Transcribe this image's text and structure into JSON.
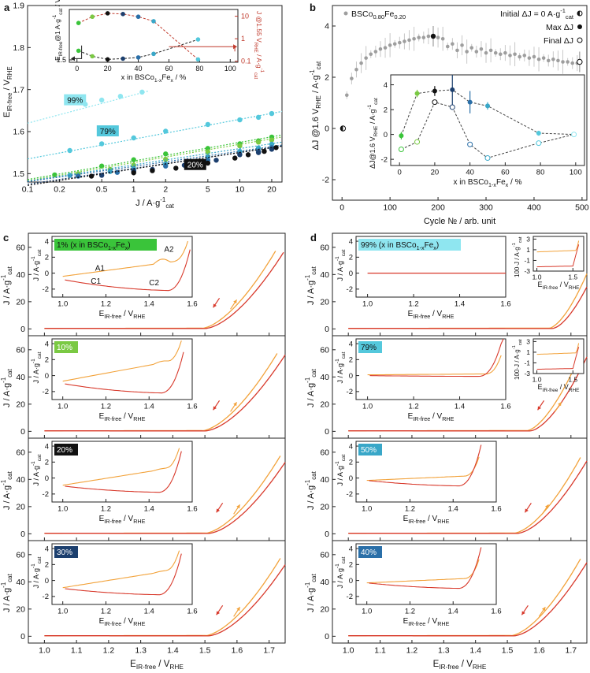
{
  "figure": {
    "colors": {
      "x1": "#3ac43a",
      "x10": "#7ac943",
      "x20": "#111111",
      "x30": "#1c3f6e",
      "x40": "#2a6fa8",
      "x50": "#39a7c8",
      "x79": "#54c8dc",
      "x99": "#8fe6f0",
      "forward": "#f2a23a",
      "backward": "#d8392b",
      "grey": "#9e9e9e",
      "darkred": "#c0392b"
    }
  },
  "chart_data": [
    {
      "id": "a",
      "panel_label": "a",
      "type": "scatter",
      "title": "",
      "xlabel_main": "J / A·g",
      "xlabel_sup": "-1",
      "xlabel_sub": "cat",
      "ylabel_main": "E",
      "ylabel_sub": "IR-free",
      "ylabel_tail": " / V",
      "ylabel_sub2": "RHE",
      "xscale": "log",
      "xlim": [
        0.1,
        25
      ],
      "ylim": [
        1.48,
        1.9
      ],
      "xticks": [
        0.1,
        0.2,
        0.5,
        1,
        2,
        5,
        10,
        20
      ],
      "xtick_labels": [
        "0.1",
        "0.2",
        "0.5",
        "1",
        "2",
        "5",
        "10",
        "20"
      ],
      "yticks": [
        1.5,
        1.6,
        1.7,
        1.8,
        1.9
      ],
      "ytick_labels": [
        "1.5",
        "1.6",
        "1.7",
        "1.8",
        "1.9"
      ],
      "labels": {
        "l99": "99%",
        "l79": "79%",
        "l20": "20%"
      },
      "series": [
        {
          "name": "99%",
          "key": "x99",
          "points": [
            [
              0.35,
              1.665
            ],
            [
              0.5,
              1.675
            ],
            [
              0.75,
              1.684
            ],
            [
              1.2,
              1.694
            ]
          ],
          "fit": [
            [
              0.1,
              1.62
            ],
            [
              1.4,
              1.697
            ]
          ]
        },
        {
          "name": "79%",
          "key": "x79",
          "points": [
            [
              0.25,
              1.555
            ],
            [
              0.5,
              1.571
            ],
            [
              1.0,
              1.585
            ],
            [
              2.0,
              1.601
            ],
            [
              5.0,
              1.617
            ],
            [
              10,
              1.628
            ],
            [
              15,
              1.634
            ],
            [
              20,
              1.643
            ]
          ],
          "fit": [
            [
              0.1,
              1.535
            ],
            [
              25,
              1.648
            ]
          ]
        },
        {
          "name": "1%",
          "key": "x1",
          "points": [
            [
              0.18,
              1.497
            ],
            [
              0.5,
              1.518
            ],
            [
              1.0,
              1.533
            ],
            [
              2.0,
              1.547
            ],
            [
              5.0,
              1.56
            ],
            [
              10,
              1.571
            ],
            [
              15,
              1.578
            ],
            [
              20,
              1.587
            ]
          ],
          "fit": [
            [
              0.1,
              1.486
            ],
            [
              25,
              1.592
            ]
          ]
        },
        {
          "name": "10%",
          "key": "x10",
          "points": [
            [
              0.3,
              1.5
            ],
            [
              0.6,
              1.51
            ],
            [
              1.0,
              1.52
            ],
            [
              2.0,
              1.534
            ],
            [
              5.0,
              1.551
            ],
            [
              10,
              1.566
            ],
            [
              15,
              1.575
            ],
            [
              20,
              1.58
            ]
          ],
          "fit": [
            [
              0.1,
              1.483
            ],
            [
              25,
              1.587
            ]
          ]
        },
        {
          "name": "50%",
          "key": "x50",
          "points": [
            [
              0.25,
              1.496
            ],
            [
              0.6,
              1.505
            ],
            [
              1.0,
              1.512
            ],
            [
              2.0,
              1.523
            ],
            [
              5.0,
              1.54
            ],
            [
              10,
              1.553
            ],
            [
              15,
              1.561
            ],
            [
              20,
              1.57
            ]
          ],
          "fit": [
            [
              0.1,
              1.482
            ],
            [
              25,
              1.575
            ]
          ]
        },
        {
          "name": "40%",
          "key": "x40",
          "points": [
            [
              0.3,
              1.494
            ],
            [
              0.7,
              1.503
            ],
            [
              1.0,
              1.508
            ],
            [
              2.0,
              1.518
            ],
            [
              5.0,
              1.532
            ],
            [
              10,
              1.546
            ],
            [
              15,
              1.553
            ],
            [
              20,
              1.562
            ]
          ],
          "fit": [
            [
              0.1,
              1.481
            ],
            [
              25,
              1.568
            ]
          ]
        },
        {
          "name": "30%",
          "key": "x30",
          "points": [
            [
              0.5,
              1.496
            ],
            [
              1.0,
              1.505
            ],
            [
              1.5,
              1.51
            ],
            [
              3.0,
              1.52
            ],
            [
              6.0,
              1.532
            ],
            [
              10,
              1.545
            ],
            [
              15,
              1.55
            ],
            [
              20,
              1.558
            ]
          ],
          "fit": [
            [
              0.1,
              1.475
            ],
            [
              25,
              1.565
            ]
          ]
        },
        {
          "name": "20%",
          "key": "x20",
          "points": [
            [
              0.4,
              1.494
            ],
            [
              1.0,
              1.502
            ],
            [
              1.5,
              1.507
            ],
            [
              2.5,
              1.513
            ],
            [
              5.0,
              1.525
            ],
            [
              9.0,
              1.537
            ],
            [
              12,
              1.545
            ],
            [
              17,
              1.553
            ],
            [
              22,
              1.562
            ]
          ],
          "fit": [
            [
              0.1,
              1.472
            ],
            [
              25,
              1.566
            ]
          ]
        }
      ]
    },
    {
      "id": "a_inset",
      "type": "line",
      "xlabel": "x in BSCo",
      "xlabel_sub": "1-x",
      "xlabel_tail": "Fe",
      "xlabel_sub2": "x",
      "xlabel_end": " / %",
      "ylabel_left": "E_IR-free@1 A·g⁻¹_cat / V_RHE",
      "ylabel_left_text": "E",
      "ylabel_left_sub": "IR-free",
      "ylabel_left_mid": "@1 A·g",
      "ylabel_left_sup": "-1",
      "ylabel_left_sub2": "cat",
      "ylabel_left_end": " / V",
      "ylabel_left_sub3": "RHE",
      "ylabel_right_text": "J @1.55 V",
      "ylabel_right_sub": "RHE",
      "ylabel_right_end": " / A·g",
      "ylabel_right_sup": "-1",
      "ylabel_right_sub2": "cat",
      "xlim": [
        -5,
        105
      ],
      "xticks": [
        0,
        20,
        40,
        60,
        80,
        100
      ],
      "xtick_labels": [
        "0",
        "20",
        "40",
        "60",
        "80",
        "100"
      ],
      "ylim_left": [
        1.49,
        1.71
      ],
      "yticks_left": [
        1.5
      ],
      "ytick_labels_left": [
        "1.5"
      ],
      "ylim_right_log": [
        0.09,
        20
      ],
      "yticks_right": [
        0.1,
        1,
        10
      ],
      "ytick_labels_right": [
        "0.1",
        "1",
        "10"
      ],
      "x": [
        1,
        10,
        20,
        30,
        40,
        50,
        79
      ],
      "E_values": [
        1.538,
        1.515,
        1.502,
        1.505,
        1.51,
        1.525,
        1.585
      ],
      "J_values": [
        5.0,
        9.5,
        13.5,
        12.5,
        9.5,
        6.0,
        0.12
      ]
    },
    {
      "id": "b",
      "panel_label": "b",
      "type": "scatter",
      "legend_main": "BSCo",
      "legend_sub": "0.80",
      "legend_mid": "Fe",
      "legend_sub2": "0.20",
      "legend_initial": "Initial ΔJ = 0 A·g",
      "legend_initial_sup": "-1",
      "legend_initial_sub": "cat",
      "legend_max": "Max ΔJ",
      "legend_final": "Final ΔJ",
      "xlabel": "Cycle № / arb. unit",
      "ylabel_main": "ΔJ @1.6 V",
      "ylabel_sub": "RHE",
      "ylabel_tail": " / A·g",
      "ylabel_sup": "-1",
      "ylabel_sub2": "cat",
      "xlim": [
        -20,
        510
      ],
      "ylim": [
        -2.8,
        4.8
      ],
      "xticks": [
        0,
        100,
        200,
        300,
        400,
        500
      ],
      "xtick_labels": [
        "0",
        "100",
        "200",
        "300",
        "400",
        "500"
      ],
      "yticks": [
        -2,
        0,
        2,
        4
      ],
      "ytick_labels": [
        "-2",
        "0",
        "2",
        "4"
      ],
      "initial": [
        2,
        0.0
      ],
      "max": [
        190,
        3.6
      ],
      "final": [
        495,
        2.6
      ],
      "grey_points": [
        [
          10,
          1.3
        ],
        [
          20,
          1.95
        ],
        [
          30,
          2.3
        ],
        [
          40,
          2.55
        ],
        [
          50,
          2.75
        ],
        [
          60,
          2.9
        ],
        [
          70,
          3.0
        ],
        [
          80,
          3.1
        ],
        [
          90,
          3.15
        ],
        [
          100,
          3.25
        ],
        [
          110,
          3.3
        ],
        [
          120,
          3.35
        ],
        [
          130,
          3.4
        ],
        [
          140,
          3.45
        ],
        [
          150,
          3.5
        ],
        [
          160,
          3.55
        ],
        [
          170,
          3.55
        ],
        [
          180,
          3.6
        ],
        [
          200,
          3.55
        ],
        [
          210,
          3.5
        ],
        [
          220,
          3.2
        ],
        [
          230,
          3.3
        ],
        [
          240,
          3.05
        ],
        [
          250,
          3.25
        ],
        [
          260,
          3.0
        ],
        [
          270,
          3.15
        ],
        [
          280,
          3.0
        ],
        [
          290,
          3.1
        ],
        [
          300,
          2.95
        ],
        [
          310,
          3.05
        ],
        [
          320,
          2.95
        ],
        [
          330,
          2.9
        ],
        [
          340,
          2.95
        ],
        [
          350,
          2.85
        ],
        [
          360,
          2.9
        ],
        [
          370,
          2.8
        ],
        [
          380,
          2.85
        ],
        [
          390,
          2.75
        ],
        [
          400,
          2.8
        ],
        [
          410,
          2.7
        ],
        [
          420,
          2.75
        ],
        [
          430,
          2.65
        ],
        [
          440,
          2.7
        ],
        [
          450,
          2.65
        ],
        [
          460,
          2.6
        ],
        [
          470,
          2.6
        ],
        [
          480,
          2.55
        ],
        [
          490,
          2.55
        ]
      ]
    },
    {
      "id": "b_inset",
      "type": "scatter",
      "xlabel": "x in BSCo",
      "xlabel_sub": "1-x",
      "xlabel_tail": "Fe",
      "xlabel_sub2": "x",
      "xlabel_end": " / %",
      "ylabel_main": "ΔJ@1.6 V",
      "ylabel_sub": "RHE",
      "ylabel_tail": " / A·g",
      "ylabel_sup": "-1",
      "ylabel_sub2": "cat",
      "xlim": [
        -5,
        105
      ],
      "ylim": [
        -2.5,
        4.8
      ],
      "xticks": [
        0,
        20,
        40,
        60,
        80,
        100
      ],
      "xtick_labels": [
        "0",
        "20",
        "40",
        "60",
        "80",
        "100"
      ],
      "yticks": [
        -2,
        0,
        2,
        4
      ],
      "ytick_labels": [
        "-2",
        "0",
        "2",
        "4"
      ],
      "x": [
        1,
        10,
        20,
        30,
        40,
        50,
        79,
        99
      ],
      "max_values": [
        -0.1,
        3.3,
        3.5,
        3.6,
        2.6,
        2.3,
        0.1,
        0.0
      ],
      "final_values": [
        -1.2,
        -0.6,
        2.6,
        2.2,
        -0.8,
        -1.9,
        -0.7,
        0.0
      ],
      "errors": [
        0.3,
        0.3,
        0.4,
        1.2,
        0.9,
        0.3,
        0.2,
        0.1
      ]
    },
    {
      "id": "cv",
      "type": "line",
      "xlabel_main": "E",
      "xlabel_sub": "IR-free",
      "xlabel_tail": " / V",
      "xlabel_sub2": "RHE",
      "ylabel_main": "J / A·g",
      "ylabel_sup": "-1",
      "ylabel_sub": "cat",
      "xlim": [
        0.95,
        1.75
      ],
      "ylim": [
        -5,
        68
      ],
      "xticks": [
        1.0,
        1.1,
        1.2,
        1.3,
        1.4,
        1.5,
        1.6,
        1.7
      ],
      "xtick_labels": [
        "1.0",
        "1.1",
        "1.2",
        "1.3",
        "1.4",
        "1.5",
        "1.6",
        "1.7"
      ],
      "yticks": [
        0,
        20,
        40,
        60
      ],
      "ytick_labels": [
        "0",
        "20",
        "40",
        "60"
      ],
      "inset_xlim": [
        0.95,
        1.6
      ],
      "inset_xticks": [
        1.0,
        1.2,
        1.4,
        1.6
      ],
      "inset_xtick_labels": [
        "1.0",
        "1.2",
        "1.4",
        "1.6"
      ],
      "inset_ylim": [
        -3,
        4.6
      ],
      "inset_yticks": [
        -2,
        0,
        2,
        4
      ],
      "inset_ytick_labels": [
        "-2",
        "0",
        "2",
        "4"
      ],
      "small_inset_xlim": [
        0.95,
        1.65
      ],
      "small_inset_xticks": [
        1.0,
        1.5
      ],
      "small_inset_xtick_labels": [
        "1.0",
        "1.5"
      ],
      "small_inset_ylim": [
        -3,
        3.5
      ],
      "small_inset_yticks": [
        -3,
        -1,
        1,
        3
      ],
      "small_inset_ytick_labels": [
        "-3",
        "-1",
        "1",
        "3"
      ],
      "small_inset_ylabel": "100·J / A·g",
      "small_inset_ylabel_sup": "-1",
      "small_inset_ylabel_sub": "cat",
      "subpanels": [
        {
          "panel_label": "c",
          "label": "1%",
          "label_extra": " (x in BSCo",
          "label_extra_sub": "1-x",
          "label_extra_tail": "Fe",
          "label_extra_sub2": "x",
          "label_extra_end": ")",
          "key": "x1",
          "txtcol": "#111111",
          "onset": 1.49,
          "k": 15,
          "dir": "down",
          "ann": true,
          "inset_shape": "a"
        },
        {
          "label": "10%",
          "key": "x10",
          "txtcol": "#ffffff",
          "onset": 1.49,
          "k": 14.5,
          "dir": "up",
          "inset_shape": "b"
        },
        {
          "label": "20%",
          "key": "x20",
          "txtcol": "#ffffff",
          "onset": 1.5,
          "k": 14.5,
          "dir": "up",
          "inset_shape": "c"
        },
        {
          "label": "30%",
          "key": "x30",
          "txtcol": "#ffffff",
          "onset": 1.5,
          "k": 14.5,
          "dir": "up",
          "inset_shape": "c"
        },
        {
          "panel_label": "d",
          "label": "99%",
          "label_extra": " (x in BSCo",
          "label_extra_sub": "1-x",
          "label_extra_tail": "Fe",
          "label_extra_sub2": "x",
          "label_extra_end": ")",
          "key": "x99",
          "txtcol": "#111111",
          "onset": 1.63,
          "k": 30,
          "dir": "none",
          "small": true,
          "flat": true
        },
        {
          "label": "79%",
          "key": "x79",
          "txtcol": "#111111",
          "onset": 1.56,
          "k": 24,
          "dir": "down",
          "small": true,
          "inset_shape": "d"
        },
        {
          "label": "50%",
          "key": "x50",
          "txtcol": "#ffffff",
          "onset": 1.52,
          "k": 17,
          "dir": "down",
          "inset_shape": "e"
        },
        {
          "label": "40%",
          "key": "x40",
          "txtcol": "#ffffff",
          "onset": 1.51,
          "k": 16,
          "dir": "down",
          "inset_shape": "e"
        }
      ],
      "annotations": {
        "A1": "A1",
        "A2": "A2",
        "C1": "C1",
        "C2": "C2"
      }
    }
  ]
}
